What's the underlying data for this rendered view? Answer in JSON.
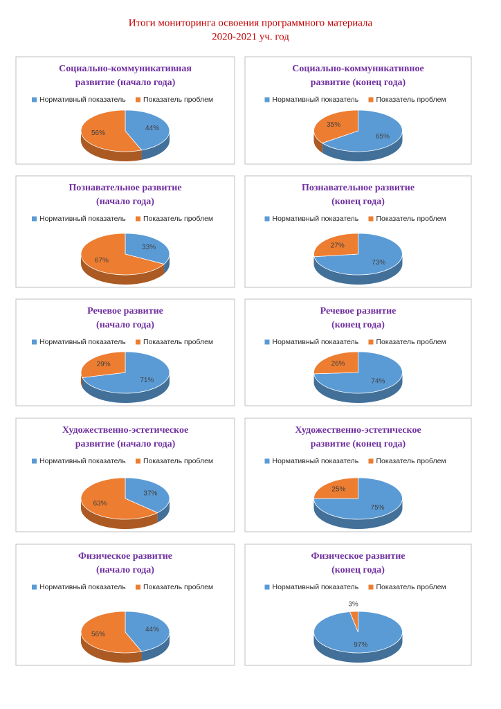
{
  "page_title": [
    "Итоги мониторинга освоения программного материала",
    "2020-2021 уч. год"
  ],
  "chart_data": [
    {
      "type": "pie",
      "title": [
        "Социально-коммуникативная",
        "развитие (начало года)"
      ],
      "categories": [
        "Нормативный показатель",
        "Показатель проблем"
      ],
      "values": [
        44,
        56
      ],
      "value_labels": [
        "44%",
        "56%"
      ],
      "colors": [
        "#5b9bd5",
        "#ed7d31"
      ]
    },
    {
      "type": "pie",
      "title": [
        "Социально-коммуникативное",
        "развитие (конец года)"
      ],
      "categories": [
        "Нормативный показатель",
        "Показатель проблем"
      ],
      "values": [
        65,
        35
      ],
      "value_labels": [
        "65%",
        "35%"
      ],
      "colors": [
        "#5b9bd5",
        "#ed7d31"
      ]
    },
    {
      "type": "pie",
      "title": [
        "Познавательное развитие",
        "(начало года)"
      ],
      "categories": [
        "Нормативный показатель",
        "Показатель проблем"
      ],
      "values": [
        33,
        67
      ],
      "value_labels": [
        "33%",
        "67%"
      ],
      "colors": [
        "#5b9bd5",
        "#ed7d31"
      ]
    },
    {
      "type": "pie",
      "title": [
        "Познавательное развитие",
        "(конец года)"
      ],
      "categories": [
        "Нормативный показатель",
        "Показатель проблем"
      ],
      "values": [
        73,
        27
      ],
      "value_labels": [
        "73%",
        "27%"
      ],
      "colors": [
        "#5b9bd5",
        "#ed7d31"
      ]
    },
    {
      "type": "pie",
      "title": [
        "Речевое развитие",
        "(начало года)"
      ],
      "categories": [
        "Нормативный показатель",
        "Показатель проблем"
      ],
      "values": [
        71,
        29
      ],
      "value_labels": [
        "71%",
        "29%"
      ],
      "colors": [
        "#5b9bd5",
        "#ed7d31"
      ]
    },
    {
      "type": "pie",
      "title": [
        "Речевое развитие",
        "(конец года)"
      ],
      "categories": [
        "Нормативный показатель",
        "Показатель проблем"
      ],
      "values": [
        74,
        26
      ],
      "value_labels": [
        "74%",
        "26%"
      ],
      "colors": [
        "#5b9bd5",
        "#ed7d31"
      ]
    },
    {
      "type": "pie",
      "title": [
        "Художественно-эстетическое",
        "развитие (начало года)"
      ],
      "categories": [
        "Нормативный показатель",
        "Показатель проблем"
      ],
      "values": [
        37,
        63
      ],
      "value_labels": [
        "37%",
        "63%"
      ],
      "colors": [
        "#5b9bd5",
        "#ed7d31"
      ]
    },
    {
      "type": "pie",
      "title": [
        "Художественно-эстетическое",
        "развитие (конец года)"
      ],
      "categories": [
        "Нормативный показатель",
        "Показатель проблем"
      ],
      "values": [
        75,
        25
      ],
      "value_labels": [
        "75%",
        "25%"
      ],
      "colors": [
        "#5b9bd5",
        "#ed7d31"
      ]
    },
    {
      "type": "pie",
      "title": [
        "Физическое развитие",
        "(начало года)"
      ],
      "categories": [
        "Нормативный показатель",
        "Показатель проблем"
      ],
      "values": [
        44,
        56
      ],
      "value_labels": [
        "44%",
        "56%"
      ],
      "colors": [
        "#5b9bd5",
        "#ed7d31"
      ]
    },
    {
      "type": "pie",
      "title": [
        "Физическое развитие",
        "(конец года)"
      ],
      "categories": [
        "Нормативный показатель",
        "Показатель проблем"
      ],
      "values": [
        97,
        3
      ],
      "value_labels": [
        "97%",
        "3%"
      ],
      "colors": [
        "#5b9bd5",
        "#ed7d31"
      ]
    }
  ]
}
